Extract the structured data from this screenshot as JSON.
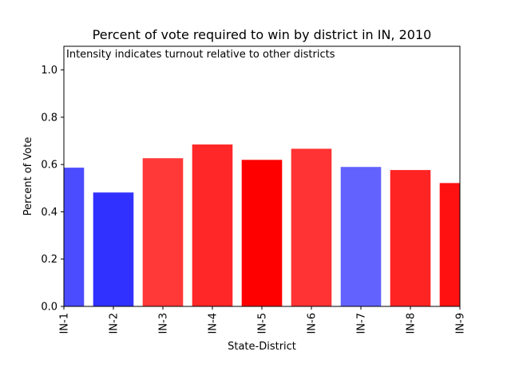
{
  "chart_data": {
    "type": "bar",
    "title": "Percent of vote required to win by district in IN, 2010",
    "subtitle": "Intensity indicates turnout relative to other districts",
    "xlabel": "State-District",
    "ylabel": "Percent of Vote",
    "ylim": [
      0,
      1.1
    ],
    "yticks": [
      "0.0",
      "0.2",
      "0.4",
      "0.6",
      "0.8",
      "1.0"
    ],
    "grid": false,
    "categories": [
      "IN-1",
      "IN-2",
      "IN-3",
      "IN-4",
      "IN-5",
      "IN-6",
      "IN-7",
      "IN-8",
      "IN-9"
    ],
    "values": [
      0.585,
      0.48,
      0.625,
      0.683,
      0.618,
      0.665,
      0.588,
      0.575,
      0.52
    ],
    "colors": [
      "#4b4bff",
      "#3131ff",
      "#ff3838",
      "#ff2727",
      "#ff0000",
      "#ff3333",
      "#6262ff",
      "#ff2424",
      "#ff1111"
    ]
  }
}
